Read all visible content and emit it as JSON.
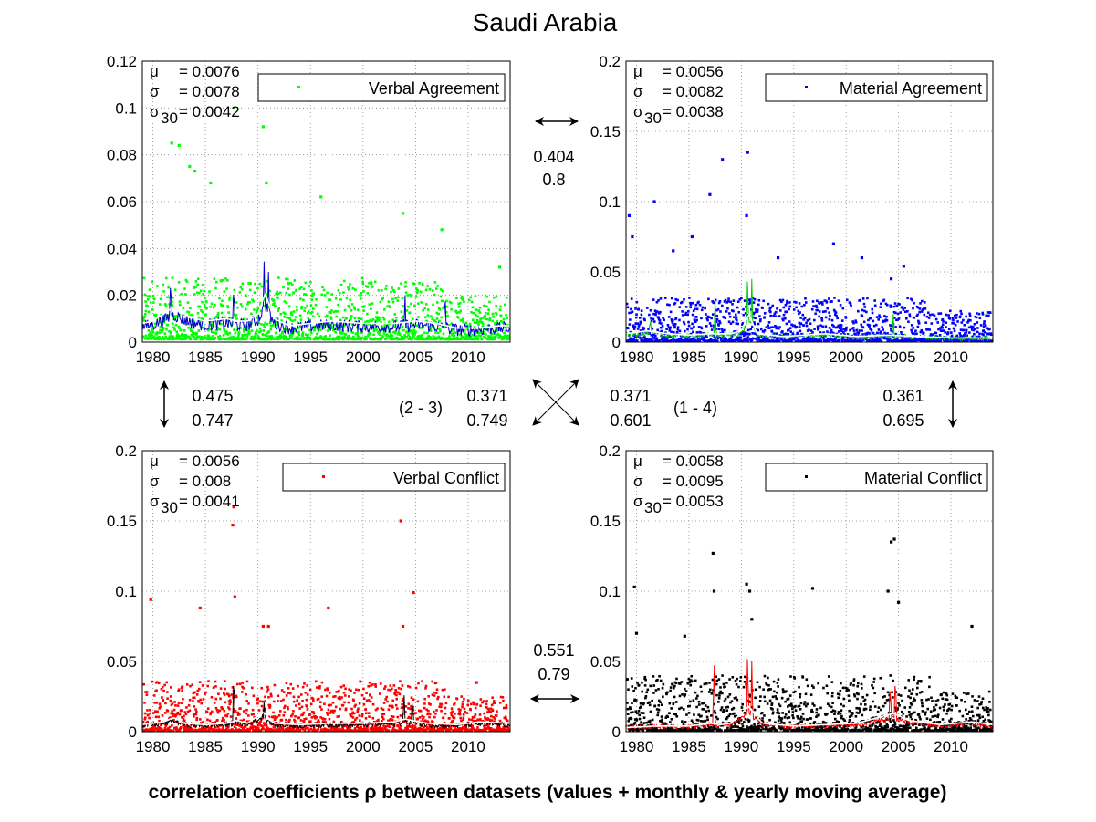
{
  "figure": {
    "title": "Saudi Arabia",
    "xlabel": "correlation coefficients ρ between datasets (values + monthly & yearly moving average)"
  },
  "chart_data": [
    {
      "type": "scatter",
      "legend": "Verbal Agreement",
      "legend_placement": "top-right",
      "grid": true,
      "xlim": [
        1979,
        2014
      ],
      "ylim": [
        0,
        0.12
      ],
      "xticks": [
        "1980",
        "1985",
        "1990",
        "1995",
        "2000",
        "2005",
        "2010"
      ],
      "yticks": [
        "0",
        "0.02",
        "0.04",
        "0.06",
        "0.08",
        "0.1",
        "0.12"
      ],
      "stats": {
        "mu": "0.0076",
        "sigma": "0.0078",
        "sigma30": "0.0042"
      },
      "colors": {
        "points": "#00ff00",
        "monthly": "#0000c8",
        "yearly": "#ffffff"
      },
      "baseline": 0.006,
      "noise": 0.012,
      "peaks": [
        [
          1981.8,
          0.085
        ],
        [
          1982.5,
          0.084
        ],
        [
          1983.5,
          0.075
        ],
        [
          1984.0,
          0.073
        ],
        [
          1985.5,
          0.068
        ],
        [
          1987.7,
          0.1
        ],
        [
          1990.5,
          0.092
        ],
        [
          1990.8,
          0.068
        ],
        [
          1996.0,
          0.062
        ],
        [
          2003.8,
          0.055
        ],
        [
          2007.5,
          0.048
        ],
        [
          2013.0,
          0.032
        ]
      ],
      "yearly_avg": [
        [
          1979,
          0.008
        ],
        [
          1980,
          0.009
        ],
        [
          1981,
          0.012
        ],
        [
          1982,
          0.015
        ],
        [
          1983,
          0.012
        ],
        [
          1984,
          0.01
        ],
        [
          1985,
          0.009
        ],
        [
          1987,
          0.01
        ],
        [
          1988,
          0.009
        ],
        [
          1989,
          0.009
        ],
        [
          1990,
          0.012
        ],
        [
          1990.7,
          0.021
        ],
        [
          1991.5,
          0.01
        ],
        [
          1993,
          0.007
        ],
        [
          1995,
          0.008
        ],
        [
          1997,
          0.009
        ],
        [
          2000,
          0.008
        ],
        [
          2003,
          0.008
        ],
        [
          2005,
          0.009
        ],
        [
          2007,
          0.008
        ],
        [
          2009,
          0.006
        ],
        [
          2011,
          0.006
        ],
        [
          2013,
          0.007
        ],
        [
          2014,
          0.007
        ]
      ],
      "spikes": [
        [
          1981.7,
          0.032
        ],
        [
          1987.7,
          0.028
        ],
        [
          1990.6,
          0.04
        ],
        [
          1991.0,
          0.03
        ],
        [
          2004.0,
          0.02
        ],
        [
          2007.8,
          0.024
        ]
      ]
    },
    {
      "type": "scatter",
      "legend": "Material Agreement",
      "legend_placement": "top-right",
      "grid": true,
      "xlim": [
        1979,
        2014
      ],
      "ylim": [
        0,
        0.2
      ],
      "xticks": [
        "1980",
        "1985",
        "1990",
        "1995",
        "2000",
        "2005",
        "2010"
      ],
      "yticks": [
        "0",
        "0.05",
        "0.1",
        "0.15",
        "0.2"
      ],
      "stats": {
        "mu": "0.0056",
        "sigma": "0.0082",
        "sigma30": "0.0038"
      },
      "colors": {
        "points": "#0000ff",
        "monthly": "#00c800",
        "yearly": "#ffffff"
      },
      "baseline": 0.004,
      "noise": 0.014,
      "peaks": [
        [
          1979.3,
          0.09
        ],
        [
          1979.6,
          0.075
        ],
        [
          1981.7,
          0.1
        ],
        [
          1983.5,
          0.065
        ],
        [
          1985.3,
          0.075
        ],
        [
          1987.0,
          0.105
        ],
        [
          1988.2,
          0.13
        ],
        [
          1990.6,
          0.135
        ],
        [
          1990.5,
          0.09
        ],
        [
          1993.5,
          0.06
        ],
        [
          1998.8,
          0.07
        ],
        [
          2001.5,
          0.06
        ],
        [
          2005.5,
          0.054
        ],
        [
          2004.3,
          0.045
        ]
      ],
      "yearly_avg": [
        [
          1979,
          0.006
        ],
        [
          1981,
          0.008
        ],
        [
          1983,
          0.006
        ],
        [
          1985,
          0.005
        ],
        [
          1987,
          0.006
        ],
        [
          1989,
          0.006
        ],
        [
          1990,
          0.008
        ],
        [
          1990.7,
          0.02
        ],
        [
          1991.5,
          0.006
        ],
        [
          1994,
          0.004
        ],
        [
          1998,
          0.006
        ],
        [
          2001,
          0.004
        ],
        [
          2004,
          0.005
        ],
        [
          2007,
          0.004
        ],
        [
          2010,
          0.003
        ],
        [
          2014,
          0.003
        ]
      ],
      "spikes": [
        [
          1981.3,
          0.02
        ],
        [
          1987.5,
          0.03
        ],
        [
          1990.6,
          0.05
        ],
        [
          1991.0,
          0.045
        ],
        [
          2004.5,
          0.02
        ]
      ]
    },
    {
      "type": "scatter",
      "legend": "Verbal Conflict",
      "legend_placement": "top-right",
      "grid": true,
      "xlim": [
        1979,
        2014
      ],
      "ylim": [
        0,
        0.2
      ],
      "xticks": [
        "1980",
        "1985",
        "1990",
        "1995",
        "2000",
        "2005",
        "2010"
      ],
      "yticks": [
        "0",
        "0.05",
        "0.1",
        "0.15",
        "0.2"
      ],
      "stats": {
        "mu": "0.0056",
        "sigma": "0.008",
        "sigma30": "0.0041"
      },
      "colors": {
        "points": "#ff0000",
        "monthly": "#000000",
        "yearly": "#ffffff"
      },
      "baseline": 0.004,
      "noise": 0.016,
      "peaks": [
        [
          1979.8,
          0.094
        ],
        [
          1984.5,
          0.088
        ],
        [
          1987.7,
          0.16
        ],
        [
          1987.6,
          0.147
        ],
        [
          1987.8,
          0.096
        ],
        [
          1990.5,
          0.075
        ],
        [
          1991.0,
          0.075
        ],
        [
          1996.7,
          0.088
        ],
        [
          2003.6,
          0.15
        ],
        [
          2003.8,
          0.075
        ],
        [
          2004.8,
          0.099
        ],
        [
          2010.8,
          0.035
        ]
      ],
      "yearly_avg": [
        [
          1979,
          0.005
        ],
        [
          1981,
          0.007
        ],
        [
          1982,
          0.01
        ],
        [
          1983,
          0.006
        ],
        [
          1985,
          0.005
        ],
        [
          1987,
          0.006
        ],
        [
          1988,
          0.008
        ],
        [
          1989,
          0.006
        ],
        [
          1990.5,
          0.014
        ],
        [
          1991.5,
          0.006
        ],
        [
          1994,
          0.005
        ],
        [
          1997,
          0.006
        ],
        [
          2000,
          0.006
        ],
        [
          2003,
          0.007
        ],
        [
          2004,
          0.009
        ],
        [
          2006,
          0.006
        ],
        [
          2009,
          0.005
        ],
        [
          2011,
          0.007
        ],
        [
          2014,
          0.006
        ]
      ],
      "spikes": [
        [
          1981.8,
          0.012
        ],
        [
          1987.7,
          0.045
        ],
        [
          1990.6,
          0.025
        ],
        [
          2003.9,
          0.03
        ],
        [
          2004.7,
          0.028
        ]
      ]
    },
    {
      "type": "scatter",
      "legend": "Material Conflict",
      "legend_placement": "top-right",
      "grid": true,
      "xlim": [
        1979,
        2014
      ],
      "ylim": [
        0,
        0.2
      ],
      "xticks": [
        "1980",
        "1985",
        "1990",
        "1995",
        "2000",
        "2005",
        "2010"
      ],
      "yticks": [
        "0",
        "0.05",
        "0.1",
        "0.15",
        "0.2"
      ],
      "stats": {
        "mu": "0.0058",
        "sigma": "0.0095",
        "sigma30": "0.0053"
      },
      "colors": {
        "points": "#000000",
        "monthly": "#ff0000",
        "yearly": "#ffffff"
      },
      "baseline": 0.004,
      "noise": 0.018,
      "peaks": [
        [
          1979.8,
          0.103
        ],
        [
          1980.0,
          0.07
        ],
        [
          1984.6,
          0.068
        ],
        [
          1987.3,
          0.127
        ],
        [
          1987.4,
          0.1
        ],
        [
          1990.5,
          0.105
        ],
        [
          1990.8,
          0.1
        ],
        [
          1991.0,
          0.08
        ],
        [
          1996.8,
          0.102
        ],
        [
          2004.3,
          0.135
        ],
        [
          2004.6,
          0.137
        ],
        [
          2004.0,
          0.1
        ],
        [
          2005.0,
          0.092
        ],
        [
          2012.0,
          0.075
        ]
      ],
      "yearly_avg": [
        [
          1979,
          0.003
        ],
        [
          1982,
          0.004
        ],
        [
          1985,
          0.004
        ],
        [
          1987,
          0.006
        ],
        [
          1988,
          0.005
        ],
        [
          1989,
          0.006
        ],
        [
          1990.7,
          0.018
        ],
        [
          1992,
          0.006
        ],
        [
          1995,
          0.004
        ],
        [
          1998,
          0.005
        ],
        [
          2001,
          0.006
        ],
        [
          2003,
          0.01
        ],
        [
          2004.5,
          0.013
        ],
        [
          2006,
          0.008
        ],
        [
          2009,
          0.005
        ],
        [
          2012,
          0.007
        ],
        [
          2014,
          0.005
        ]
      ],
      "spikes": [
        [
          1987.4,
          0.055
        ],
        [
          1990.6,
          0.06
        ],
        [
          1991.0,
          0.05
        ],
        [
          2004.2,
          0.04
        ],
        [
          2004.7,
          0.045
        ]
      ]
    }
  ],
  "correlations": [
    {
      "id": "1-2",
      "values": [
        "0.404",
        "0.8"
      ]
    },
    {
      "id": "1-3",
      "values": [
        "0.475",
        "0.747"
      ]
    },
    {
      "id": "2-4",
      "values": [
        "0.361",
        "0.695"
      ]
    },
    {
      "id": "2-3",
      "label": "(2 - 3)",
      "values": [
        "0.371",
        "0.749"
      ]
    },
    {
      "id": "1-4",
      "label": "(1 - 4)",
      "values": [
        "0.371",
        "0.601"
      ]
    },
    {
      "id": "3-4",
      "values": [
        "0.551",
        "0.79"
      ]
    }
  ]
}
